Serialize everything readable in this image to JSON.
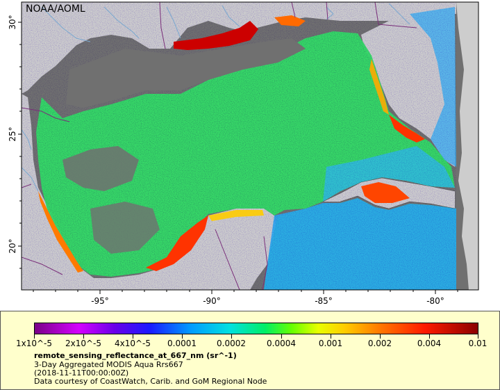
{
  "map": {
    "brand": "NOAA/AOML",
    "lon_labels": [
      "-95°",
      "-90°",
      "-85°",
      "-80°"
    ],
    "lat_labels": [
      "30°",
      "25°",
      "20°"
    ],
    "colors": {
      "ocean_nodata": "#707070",
      "land": "#cdcdcd",
      "border": "#7a2f7a",
      "river": "#7aa8d0"
    }
  },
  "legend": {
    "ticks": [
      "1x10^-5",
      "2x10^-5",
      "4x10^-5",
      "0.0001",
      "0.0002",
      "0.0004",
      "0.001",
      "0.002",
      "0.004",
      "0.01"
    ],
    "title": "remote_sensing_reflectance_at_667_nm (sr^-1)",
    "line1": "3-Day Aggregated MODIS Aqua Rrs667",
    "line2": "(2018-11-11T00:00:00Z)",
    "line3": "Data courtesy of CoastWatch, Carib. and GoM Regional Node"
  }
}
